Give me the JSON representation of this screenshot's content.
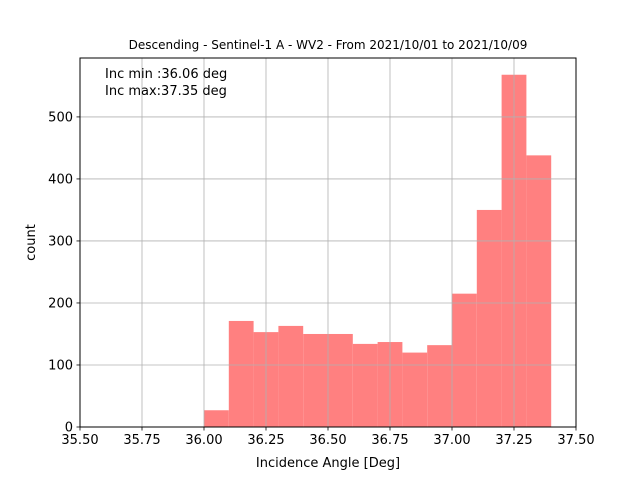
{
  "chart_data": {
    "type": "bar",
    "title": "Descending - Sentinel-1 A - WV2 - From 2021/10/01 to 2021/10/09",
    "xlabel": "Incidence Angle [Deg]",
    "ylabel": "count",
    "xlim": [
      35.5,
      37.5
    ],
    "ylim": [
      0,
      595
    ],
    "grid": true,
    "bar_color": "#ff8080",
    "x_ticks": [
      "35.50",
      "35.75",
      "36.00",
      "36.25",
      "36.50",
      "36.75",
      "37.00",
      "37.25",
      "37.50"
    ],
    "y_ticks": [
      "0",
      "100",
      "200",
      "300",
      "400",
      "500"
    ],
    "annotations": [
      "Inc min :36.06 deg",
      "Inc max:37.35 deg"
    ],
    "bins": [
      {
        "x0": 36.0,
        "x1": 36.1,
        "value": 27
      },
      {
        "x0": 36.1,
        "x1": 36.2,
        "value": 171
      },
      {
        "x0": 36.2,
        "x1": 36.3,
        "value": 153
      },
      {
        "x0": 36.3,
        "x1": 36.4,
        "value": 163
      },
      {
        "x0": 36.4,
        "x1": 36.5,
        "value": 150
      },
      {
        "x0": 36.5,
        "x1": 36.6,
        "value": 150
      },
      {
        "x0": 36.6,
        "x1": 36.7,
        "value": 134
      },
      {
        "x0": 36.7,
        "x1": 36.8,
        "value": 137
      },
      {
        "x0": 36.8,
        "x1": 36.9,
        "value": 120
      },
      {
        "x0": 36.9,
        "x1": 37.0,
        "value": 132
      },
      {
        "x0": 37.0,
        "x1": 37.1,
        "value": 215
      },
      {
        "x0": 37.1,
        "x1": 37.2,
        "value": 350
      },
      {
        "x0": 37.2,
        "x1": 37.3,
        "value": 568
      },
      {
        "x0": 37.3,
        "x1": 37.4,
        "value": 438
      }
    ]
  }
}
